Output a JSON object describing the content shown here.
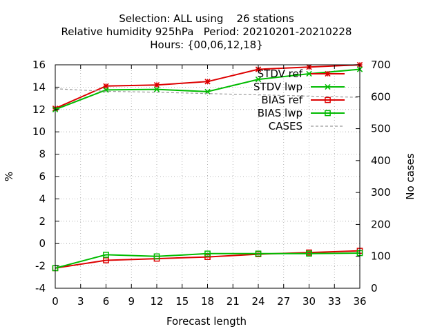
{
  "chart_data": {
    "type": "line",
    "title_lines": [
      "Selection: ALL using    26 stations",
      "Relative humidity 925hPa   Period: 20210201-20210228",
      "Hours: {00,06,12,18}"
    ],
    "xlabel": "Forecast length",
    "ylabel": "%",
    "y2label": "No cases",
    "x_ticks": [
      "0",
      "3",
      "6",
      "9",
      "12",
      "15",
      "18",
      "21",
      "24",
      "27",
      "30",
      "33",
      "36"
    ],
    "y_ticks": [
      "-4",
      "-2",
      "0",
      "2",
      "4",
      "6",
      "8",
      "10",
      "12",
      "14",
      "16"
    ],
    "y2_ticks": [
      "0",
      "100",
      "200",
      "300",
      "400",
      "500",
      "600",
      "700"
    ],
    "xlim": [
      0,
      36
    ],
    "ylim": [
      -4,
      16
    ],
    "y2lim": [
      0,
      700
    ],
    "grid": true,
    "legend_position": "top-right",
    "x": [
      0,
      6,
      12,
      18,
      24,
      30,
      36
    ],
    "series": [
      {
        "name": "STDV ref",
        "color": "#dd0000",
        "marker": "star",
        "axis": "left",
        "values": [
          12.1,
          14.1,
          14.2,
          14.5,
          15.6,
          15.8,
          16.0
        ]
      },
      {
        "name": "STDV lwp",
        "color": "#00bb00",
        "marker": "x",
        "axis": "left",
        "values": [
          12.0,
          13.75,
          13.8,
          13.6,
          14.7,
          15.2,
          15.6
        ]
      },
      {
        "name": "BIAS ref",
        "color": "#dd0000",
        "marker": "square",
        "axis": "left",
        "values": [
          -2.2,
          -1.5,
          -1.35,
          -1.2,
          -0.95,
          -0.8,
          -0.65
        ]
      },
      {
        "name": "BIAS lwp",
        "color": "#00bb00",
        "marker": "square",
        "axis": "left",
        "values": [
          -2.2,
          -1.0,
          -1.15,
          -0.9,
          -0.9,
          -0.9,
          -0.85
        ]
      },
      {
        "name": "CASES",
        "color": "#999999",
        "marker": "none",
        "axis": "right",
        "dash": true,
        "values": [
          625,
          617,
          614,
          610,
          606,
          602,
          598
        ]
      }
    ]
  }
}
